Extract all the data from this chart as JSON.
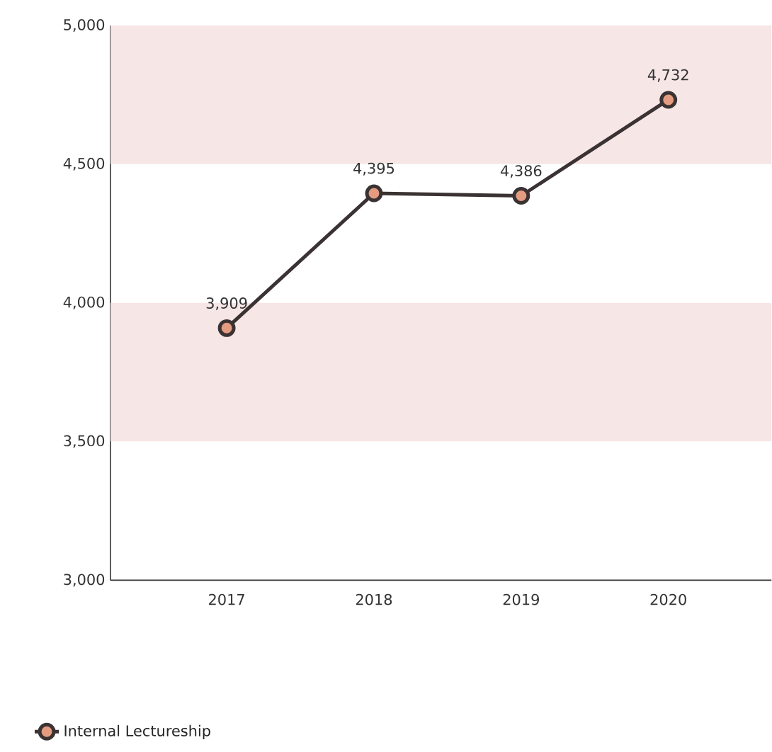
{
  "chart_data": {
    "type": "line",
    "categories": [
      "2017",
      "2018",
      "2019",
      "2020"
    ],
    "series": [
      {
        "name": "Internal Lectureship",
        "color": "#3a3233",
        "values": [
          3909,
          4395,
          4386,
          4732
        ],
        "value_labels": [
          "3,909",
          "4,395",
          "4,386",
          "4,732"
        ]
      }
    ],
    "ylim": [
      3000,
      5000
    ],
    "yticks": [
      {
        "value": 3000,
        "label": "3,000"
      },
      {
        "value": 3500,
        "label": "3,500"
      },
      {
        "value": 4000,
        "label": "4,000"
      },
      {
        "value": 4500,
        "label": "4,500"
      },
      {
        "value": 5000,
        "label": "5,000"
      }
    ],
    "bands": [
      {
        "axis": "y",
        "from": 3500,
        "to": 4000,
        "color": "#f7e6e6"
      },
      {
        "axis": "y",
        "from": 4500,
        "to": 5000,
        "color": "#f7e6e6"
      }
    ],
    "marker": "circle",
    "line_style": "solid",
    "legend": "bottom left"
  }
}
